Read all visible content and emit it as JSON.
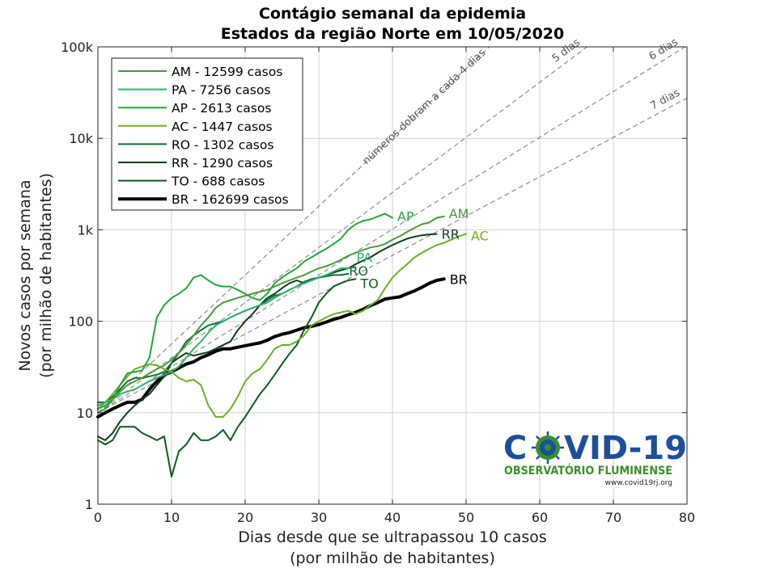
{
  "chart_data": {
    "type": "line",
    "title": "Contágio semanal da epidemia",
    "subtitle": "Estados da região Norte em 10/05/2020",
    "xlabel": "Dias desde que se ultrapassou 10 casos",
    "xlabel2": "(por milhão de habitantes)",
    "ylabel": "Novos casos por semana",
    "ylabel2": "(por milhão de habitantes)",
    "xlim": [
      0,
      80
    ],
    "ylim": [
      1,
      100000
    ],
    "yscale": "log",
    "grid": true,
    "legend_position": "top-left",
    "x_ticks": [
      0,
      10,
      20,
      30,
      40,
      50,
      60,
      70,
      80
    ],
    "x_tick_labels": [
      "0",
      "10",
      "20",
      "30",
      "40",
      "50",
      "60",
      "70",
      "80"
    ],
    "y_ticks": [
      1,
      10,
      100,
      1000,
      10000,
      100000
    ],
    "y_tick_labels": [
      "1",
      "10",
      "100",
      "1k",
      "10k",
      "100k"
    ],
    "reference_lines": [
      {
        "doubling_days": 4,
        "label": "números dobram a cada 4 dias"
      },
      {
        "doubling_days": 5,
        "label": "5 dias"
      },
      {
        "doubling_days": 6,
        "label": "6 dias"
      },
      {
        "doubling_days": 7,
        "label": "7 dias"
      }
    ],
    "series": [
      {
        "name": "AM - 12599 casos",
        "end_label": "AM",
        "color": "#4a9a3c",
        "width": 2,
        "x": [
          0,
          1,
          2,
          3,
          4,
          5,
          6,
          7,
          8,
          9,
          10,
          11,
          12,
          13,
          14,
          15,
          16,
          17,
          18,
          19,
          20,
          21,
          22,
          23,
          24,
          25,
          26,
          27,
          28,
          29,
          30,
          31,
          32,
          33,
          34,
          35,
          36,
          37,
          38,
          39,
          40,
          41,
          42,
          43,
          44,
          45,
          46,
          47
        ],
        "y": [
          11,
          12,
          14,
          17,
          20,
          22,
          24,
          27,
          30,
          33,
          38,
          45,
          55,
          70,
          90,
          110,
          140,
          160,
          170,
          180,
          190,
          200,
          210,
          220,
          240,
          260,
          280,
          300,
          320,
          350,
          380,
          400,
          430,
          470,
          520,
          560,
          600,
          640,
          660,
          700,
          780,
          850,
          950,
          1050,
          1150,
          1200,
          1350,
          1400
        ]
      },
      {
        "name": "PA - 7256 casos",
        "end_label": "PA",
        "color": "#2fb36b",
        "width": 2,
        "x": [
          0,
          1,
          2,
          3,
          4,
          5,
          6,
          7,
          8,
          9,
          10,
          11,
          12,
          13,
          14,
          15,
          16,
          17,
          18,
          19,
          20,
          21,
          22,
          23,
          24,
          25,
          26,
          27,
          28,
          29,
          30,
          31,
          32,
          33,
          34,
          35
        ],
        "y": [
          12,
          13,
          14,
          16,
          17,
          18,
          20,
          22,
          24,
          26,
          28,
          32,
          40,
          50,
          60,
          75,
          90,
          100,
          110,
          120,
          130,
          140,
          150,
          160,
          180,
          200,
          220,
          240,
          260,
          280,
          300,
          320,
          350,
          380,
          380,
          390
        ]
      },
      {
        "name": "AP - 2613 casos",
        "end_label": "AP",
        "color": "#23a63a",
        "width": 2,
        "x": [
          0,
          1,
          2,
          3,
          4,
          5,
          6,
          7,
          8,
          9,
          10,
          11,
          12,
          13,
          14,
          15,
          16,
          17,
          18,
          19,
          20,
          21,
          22,
          23,
          24,
          25,
          26,
          27,
          28,
          29,
          30,
          31,
          32,
          33,
          34,
          35,
          36,
          37,
          38,
          39,
          40
        ],
        "y": [
          10,
          11,
          14,
          20,
          27,
          28,
          29,
          40,
          110,
          150,
          180,
          200,
          230,
          300,
          320,
          280,
          250,
          240,
          240,
          220,
          200,
          180,
          170,
          200,
          260,
          300,
          340,
          380,
          450,
          500,
          560,
          620,
          700,
          800,
          1000,
          1150,
          1250,
          1300,
          1400,
          1500,
          1350
        ]
      },
      {
        "name": "AC - 1447 casos",
        "end_label": "AC",
        "color": "#6ab023",
        "width": 2,
        "x": [
          0,
          1,
          2,
          3,
          4,
          5,
          6,
          7,
          8,
          9,
          10,
          11,
          12,
          13,
          14,
          15,
          16,
          17,
          18,
          19,
          20,
          21,
          22,
          23,
          24,
          25,
          26,
          27,
          28,
          29,
          30,
          31,
          32,
          33,
          34,
          35,
          36,
          37,
          38,
          39,
          40,
          41,
          42,
          43,
          44,
          45,
          46,
          47,
          48,
          49,
          50
        ],
        "y": [
          11,
          13,
          16,
          20,
          25,
          30,
          32,
          34,
          33,
          30,
          28,
          24,
          22,
          23,
          20,
          12,
          9,
          9,
          11,
          15,
          22,
          27,
          30,
          38,
          50,
          55,
          55,
          60,
          70,
          90,
          100,
          110,
          120,
          125,
          130,
          120,
          130,
          150,
          170,
          230,
          300,
          360,
          420,
          500,
          560,
          620,
          680,
          720,
          780,
          850,
          900
        ]
      },
      {
        "name": "RO - 1302 casos",
        "end_label": "RO",
        "color": "#116b38",
        "width": 2,
        "x": [
          0,
          1,
          2,
          3,
          4,
          5,
          6,
          7,
          8,
          9,
          10,
          11,
          12,
          13,
          14,
          15,
          16,
          17,
          18,
          19,
          20,
          21,
          22,
          23,
          24,
          25,
          26,
          27,
          28,
          29,
          30,
          31,
          32,
          33,
          34
        ],
        "y": [
          13,
          13,
          15,
          18,
          22,
          24,
          24,
          25,
          26,
          28,
          35,
          45,
          60,
          70,
          80,
          90,
          95,
          100,
          110,
          120,
          130,
          140,
          150,
          170,
          190,
          200,
          220,
          240,
          270,
          290,
          300,
          310,
          320,
          320,
          330
        ]
      },
      {
        "name": "RR - 1290 casos",
        "end_label": "RR",
        "color": "#0e3d1c",
        "width": 2,
        "x": [
          0,
          1,
          2,
          3,
          4,
          5,
          6,
          7,
          8,
          9,
          10,
          11,
          12,
          13,
          14,
          15,
          16,
          17,
          18,
          19,
          20,
          21,
          22,
          23,
          24,
          25,
          26,
          27,
          28,
          29,
          30,
          31,
          32,
          33,
          34,
          35,
          36,
          37,
          38,
          39,
          40,
          41,
          42,
          43,
          44,
          45,
          46
        ],
        "y": [
          5.5,
          5,
          6,
          8,
          10,
          12,
          14,
          16,
          20,
          25,
          35,
          40,
          45,
          42,
          44,
          46,
          50,
          55,
          60,
          80,
          100,
          120,
          150,
          180,
          200,
          230,
          260,
          280,
          260,
          280,
          300,
          320,
          340,
          360,
          380,
          420,
          460,
          500,
          560,
          620,
          680,
          740,
          800,
          840,
          870,
          890,
          900
        ]
      },
      {
        "name": "TO - 688 casos",
        "end_label": "TO",
        "color": "#0d5a1e",
        "width": 2,
        "x": [
          0,
          1,
          2,
          3,
          4,
          5,
          6,
          7,
          8,
          9,
          10,
          11,
          12,
          13,
          14,
          15,
          16,
          17,
          18,
          19,
          20,
          21,
          22,
          23,
          24,
          25,
          26,
          27,
          28,
          29,
          30,
          31,
          32,
          33,
          34,
          35
        ],
        "y": [
          5,
          4.5,
          5,
          7,
          7,
          7,
          6,
          5.5,
          5,
          5.5,
          2,
          3.8,
          4.5,
          6,
          5,
          5,
          5.5,
          6.5,
          5,
          7,
          9,
          12,
          16,
          20,
          26,
          34,
          44,
          55,
          80,
          110,
          160,
          200,
          240,
          260,
          280,
          290
        ]
      },
      {
        "name": "BR - 162699 casos",
        "end_label": "BR",
        "color": "#000000",
        "width": 4,
        "x": [
          0,
          1,
          2,
          3,
          4,
          5,
          6,
          7,
          8,
          9,
          10,
          11,
          12,
          13,
          14,
          15,
          16,
          17,
          18,
          19,
          20,
          21,
          22,
          23,
          24,
          25,
          26,
          27,
          28,
          29,
          30,
          31,
          32,
          33,
          34,
          35,
          36,
          37,
          38,
          39,
          40,
          41,
          42,
          43,
          44,
          45,
          46,
          47
        ],
        "y": [
          9,
          10,
          11,
          12,
          13,
          13,
          14,
          18,
          22,
          26,
          28,
          31,
          34,
          36,
          40,
          43,
          47,
          50,
          50,
          52,
          54,
          56,
          58,
          62,
          68,
          72,
          75,
          80,
          85,
          88,
          92,
          98,
          105,
          110,
          118,
          125,
          135,
          148,
          160,
          175,
          180,
          185,
          200,
          215,
          235,
          260,
          280,
          290
        ]
      }
    ]
  },
  "logo": {
    "title_left": "C",
    "title_right": "VID-19",
    "subtitle": "OBSERVATÓRIO FLUMINENSE",
    "url": "www.covid19rj.org",
    "color_blue": "#1d4f9c",
    "color_green": "#3a8f2a"
  }
}
